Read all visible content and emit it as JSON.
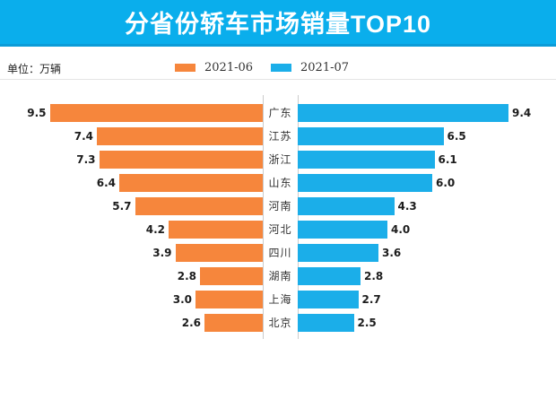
{
  "title": "分省份轿车市场销量TOP10",
  "unit_label": "单位：万辆",
  "legend": [
    {
      "label": "2021-06",
      "color": "#f6863c"
    },
    {
      "label": "2021-07",
      "color": "#1baee9"
    }
  ],
  "colors": {
    "banner": "#0aaeec",
    "banner_edge": "#0c9cd8",
    "june_bar": "#f6863c",
    "july_bar": "#1baee9",
    "axis": "#cccccc"
  },
  "chart_data": {
    "type": "bar",
    "variant": "tornado",
    "title": "分省份轿车市场销量TOP10",
    "unit": "万辆",
    "legend_position": "top",
    "categories": [
      "广东",
      "江苏",
      "浙江",
      "山东",
      "河南",
      "河北",
      "四川",
      "湖南",
      "上海",
      "北京"
    ],
    "series": [
      {
        "name": "2021-06",
        "side": "left",
        "values": [
          9.5,
          7.4,
          7.3,
          6.4,
          5.7,
          4.2,
          3.9,
          2.8,
          3.0,
          2.6
        ]
      },
      {
        "name": "2021-07",
        "side": "right",
        "values": [
          9.4,
          6.5,
          6.1,
          6.0,
          4.3,
          4.0,
          3.6,
          2.8,
          2.7,
          2.5
        ]
      }
    ],
    "xlim": [
      0,
      10
    ],
    "value_labels": true,
    "grid": false
  }
}
